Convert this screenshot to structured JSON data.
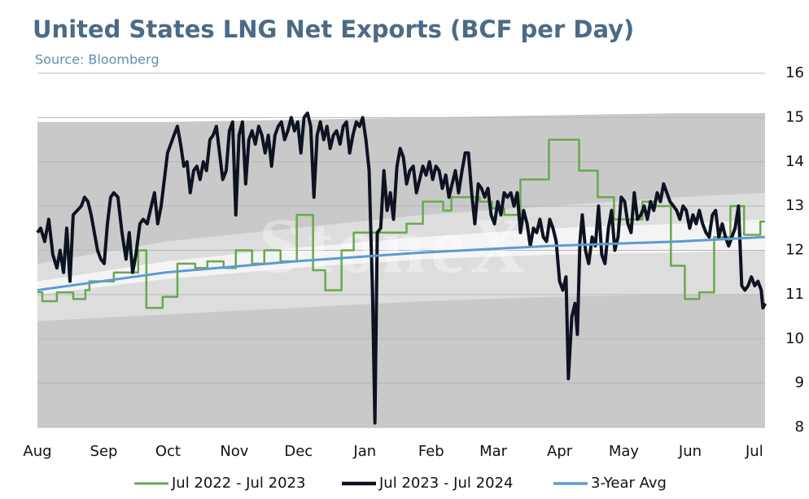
{
  "chart_data": {
    "type": "line",
    "title": "United States LNG Net Exports (BCF per Day)",
    "subtitle": "Source: Bloomberg",
    "watermark": "StoneX",
    "xlim": [
      0,
      340
    ],
    "xticks": [
      {
        "value": 0,
        "label": "Aug"
      },
      {
        "value": 31,
        "label": "Sep"
      },
      {
        "value": 61,
        "label": "Oct"
      },
      {
        "value": 92,
        "label": "Nov"
      },
      {
        "value": 122,
        "label": "Dec"
      },
      {
        "value": 153,
        "label": "Jan"
      },
      {
        "value": 184,
        "label": "Feb"
      },
      {
        "value": 213,
        "label": "Mar"
      },
      {
        "value": 244,
        "label": "Apr"
      },
      {
        "value": 274,
        "label": "May"
      },
      {
        "value": 305,
        "label": "Jun"
      },
      {
        "value": 335,
        "label": "Jul"
      }
    ],
    "ylim": [
      8,
      16
    ],
    "yticks": [
      8,
      9,
      10,
      11,
      12,
      13,
      14,
      15,
      16
    ],
    "grid": true,
    "legend": "bottom",
    "bands": [
      {
        "color": "#c9c9c9",
        "x": [
          0,
          60,
          120,
          180,
          240,
          300,
          340
        ],
        "lower": [
          8,
          8,
          8,
          8,
          8,
          8,
          8
        ],
        "upper": [
          14.9,
          14.9,
          14.95,
          15.0,
          15.05,
          15.1,
          15.1
        ]
      },
      {
        "color": "#dddddd",
        "x": [
          0,
          60,
          120,
          180,
          240,
          300,
          340
        ],
        "lower": [
          10.4,
          10.55,
          10.7,
          10.85,
          10.95,
          11.0,
          11.0
        ],
        "upper": [
          11.7,
          12.2,
          12.5,
          12.8,
          13.0,
          13.2,
          13.3
        ]
      },
      {
        "color": "#f4f4f4",
        "x": [
          0,
          60,
          120,
          180,
          240,
          300,
          340
        ],
        "lower": [
          11.0,
          11.35,
          11.6,
          11.8,
          11.9,
          11.95,
          12.0
        ],
        "upper": [
          11.3,
          11.75,
          12.05,
          12.3,
          12.5,
          12.6,
          12.7
        ]
      }
    ],
    "series": [
      {
        "name": "Jul 2022 - Jul 2023",
        "color": "#6aa84f",
        "width": 2.5,
        "step": true,
        "x": [
          0,
          2.3,
          9.1,
          16.7,
          22.4,
          24.3,
          35.7,
          47.1,
          50.9,
          58.5,
          65.4,
          73.7,
          79.4,
          87.0,
          92.7,
          100.3,
          106.0,
          113.6,
          121.2,
          128.8,
          134.5,
          142.1,
          147.8,
          172.5,
          180.1,
          189.6,
          193.4,
          206.7,
          212.4,
          218.1,
          225.7,
          239.0,
          253.1,
          261.8,
          269.4,
          282.7,
          288.4,
          296.0,
          302.5,
          309.3,
          316.2,
          323.8,
          330.2,
          337.8
        ],
        "values": [
          11.05,
          10.85,
          11.05,
          10.9,
          11.1,
          11.3,
          11.5,
          12.0,
          10.7,
          10.95,
          11.7,
          11.6,
          11.75,
          11.6,
          12.0,
          11.7,
          12.0,
          11.75,
          12.8,
          11.55,
          11.1,
          12.0,
          12.4,
          12.6,
          13.1,
          12.9,
          13.2,
          13.1,
          12.95,
          12.8,
          13.6,
          14.5,
          13.8,
          13.2,
          12.7,
          13.1,
          13.0,
          11.65,
          10.9,
          11.05,
          12.3,
          13.0,
          12.35,
          12.65
        ]
      },
      {
        "name": "Jul 2023 - Jul 2024",
        "color": "#0d1321",
        "width": 4,
        "x": [
          0,
          1.5,
          3.4,
          5.3,
          7.2,
          9.1,
          10.6,
          12.2,
          13.7,
          15.2,
          16.7,
          18.6,
          20.5,
          22.0,
          23.6,
          25.1,
          26.6,
          28.1,
          29.6,
          31.2,
          32.7,
          34.2,
          35.7,
          37.6,
          39.5,
          41.4,
          42.9,
          44.5,
          46.0,
          47.9,
          49.4,
          51.3,
          53.2,
          54.7,
          56.2,
          57.8,
          59.3,
          60.8,
          62.3,
          63.8,
          65.4,
          66.9,
          68.4,
          69.9,
          71.4,
          73.0,
          74.5,
          76.0,
          77.5,
          79.0,
          80.6,
          82.1,
          83.6,
          85.1,
          86.6,
          88.2,
          89.7,
          91.2,
          92.7,
          94.2,
          95.8,
          97.3,
          98.8,
          100.3,
          101.8,
          103.4,
          104.9,
          106.4,
          107.9,
          109.4,
          111.0,
          112.5,
          114.0,
          115.5,
          117.0,
          118.6,
          120.1,
          121.6,
          123.1,
          124.6,
          126.2,
          127.7,
          129.2,
          130.7,
          132.2,
          133.8,
          135.3,
          136.8,
          138.3,
          139.8,
          141.4,
          142.9,
          144.4,
          145.9,
          147.4,
          149.0,
          150.5,
          152.0,
          153.5,
          155.0,
          156.6,
          157.7,
          158.8,
          160.4,
          161.9,
          163.4,
          164.9,
          166.4,
          168.0,
          169.5,
          171.0,
          172.5,
          174.0,
          175.6,
          177.1,
          178.6,
          180.1,
          181.6,
          183.2,
          184.7,
          186.2,
          187.7,
          189.2,
          190.8,
          192.3,
          193.8,
          195.3,
          196.8,
          198.4,
          199.9,
          201.4,
          202.9,
          204.4,
          206.0,
          207.5,
          209.0,
          210.5,
          212.0,
          213.6,
          215.1,
          216.6,
          218.1,
          219.6,
          221.2,
          222.7,
          224.2,
          225.7,
          227.2,
          228.8,
          230.3,
          231.8,
          233.3,
          234.8,
          236.4,
          237.9,
          239.4,
          240.9,
          242.4,
          244.0,
          245.5,
          247.0,
          248.1,
          249.7,
          251.2,
          252.3,
          253.5,
          254.6,
          256.1,
          257.6,
          259.2,
          260.7,
          262.2,
          263.7,
          265.2,
          266.8,
          268.3,
          269.8,
          271.3,
          272.8,
          274.4,
          275.9,
          277.4,
          278.9,
          280.4,
          282.0,
          283.5,
          285.0,
          286.5,
          288.0,
          289.6,
          291.1,
          292.6,
          294.1,
          295.6,
          297.2,
          298.7,
          300.2,
          301.7,
          303.2,
          304.8,
          306.3,
          307.8,
          309.3,
          310.8,
          312.4,
          313.9,
          315.4,
          316.9,
          318.4,
          320.0,
          321.5,
          323.0,
          324.5,
          326.0,
          327.6,
          329.1,
          330.6,
          332.1,
          333.6,
          335.2,
          336.7,
          338.2,
          339.0,
          340.1
        ],
        "values": [
          12.4,
          12.5,
          12.2,
          12.7,
          11.9,
          11.6,
          12.0,
          11.5,
          12.5,
          11.3,
          12.8,
          12.9,
          13.0,
          13.2,
          13.1,
          12.8,
          12.4,
          12.0,
          11.8,
          11.7,
          12.6,
          13.2,
          13.3,
          13.2,
          12.4,
          11.8,
          12.4,
          11.5,
          11.9,
          12.6,
          12.7,
          12.6,
          13.0,
          13.3,
          12.6,
          13.0,
          13.6,
          14.2,
          14.4,
          14.6,
          14.8,
          14.4,
          13.9,
          14.0,
          13.3,
          13.8,
          13.9,
          13.6,
          14.0,
          13.8,
          14.5,
          14.6,
          14.8,
          14.2,
          13.6,
          13.8,
          14.7,
          14.9,
          12.8,
          14.6,
          14.9,
          13.5,
          14.5,
          14.7,
          14.4,
          14.8,
          14.6,
          14.2,
          14.6,
          13.9,
          14.6,
          14.8,
          14.9,
          14.5,
          14.7,
          15.0,
          14.7,
          14.9,
          14.2,
          15.0,
          15.1,
          14.8,
          13.2,
          14.6,
          14.9,
          14.5,
          14.8,
          14.3,
          14.6,
          14.7,
          14.4,
          14.8,
          14.9,
          14.2,
          14.6,
          14.9,
          14.8,
          15.0,
          14.5,
          13.8,
          11.0,
          8.1,
          12.4,
          12.5,
          13.8,
          12.9,
          13.3,
          12.7,
          13.9,
          14.3,
          14.1,
          13.5,
          13.8,
          13.9,
          13.3,
          13.6,
          13.9,
          13.7,
          14.0,
          13.6,
          13.9,
          13.8,
          13.4,
          13.7,
          13.2,
          13.5,
          13.8,
          13.3,
          13.8,
          14.2,
          14.2,
          13.3,
          12.6,
          13.5,
          13.4,
          13.2,
          13.4,
          12.8,
          12.6,
          13.1,
          12.8,
          13.3,
          13.2,
          13.3,
          13.0,
          13.3,
          12.4,
          12.9,
          12.6,
          12.1,
          12.5,
          12.4,
          12.7,
          12.3,
          12.2,
          12.7,
          12.5,
          12.2,
          11.3,
          11.1,
          11.4,
          9.1,
          10.5,
          10.8,
          10.1,
          12.2,
          12.8,
          12.0,
          11.7,
          12.3,
          12.1,
          13.0,
          11.9,
          11.7,
          12.5,
          12.9,
          12.0,
          12.3,
          13.2,
          13.1,
          12.6,
          12.4,
          13.3,
          12.7,
          12.8,
          13.0,
          12.7,
          13.1,
          12.9,
          13.3,
          13.1,
          13.5,
          13.3,
          13.1,
          13.0,
          12.9,
          12.7,
          13.0,
          12.9,
          12.5,
          12.8,
          12.6,
          12.9,
          12.6,
          12.4,
          12.3,
          12.8,
          12.9,
          12.3,
          12.6,
          12.3,
          12.1,
          12.3,
          12.5,
          13.0,
          11.2,
          11.1,
          11.2,
          11.4,
          11.2,
          11.3,
          11.1,
          10.7,
          10.8
        ]
      },
      {
        "name": "3-Year Avg",
        "color": "#5b9bd5",
        "width": 3,
        "x": [
          0,
          60,
          120,
          180,
          240,
          300,
          340
        ],
        "values": [
          11.1,
          11.5,
          11.75,
          11.95,
          12.1,
          12.2,
          12.3
        ]
      }
    ]
  }
}
